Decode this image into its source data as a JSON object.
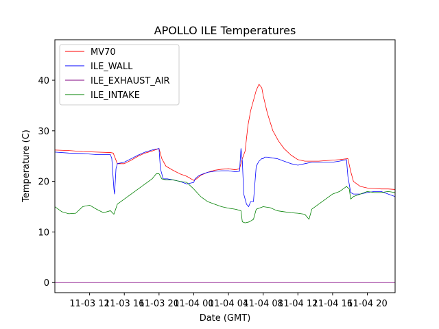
{
  "chart_data": {
    "type": "line",
    "title": "APOLLO ILE Temperatures",
    "xlabel": "Date (GMT)",
    "ylabel": "Temperature (C)",
    "xlim": [
      8.5,
      33.0
    ],
    "ylim": [
      -2,
      48
    ],
    "grid": false,
    "legend_position": "top-left",
    "x_ticks": [
      {
        "value": 11,
        "label": "11-03 12"
      },
      {
        "value": 13.5,
        "label": "11-03 16"
      },
      {
        "value": 16,
        "label": "11-03 20"
      },
      {
        "value": 18.5,
        "label": "11-04 00"
      },
      {
        "value": 21,
        "label": "11-04 04"
      },
      {
        "value": 23.5,
        "label": "11-04 08"
      },
      {
        "value": 26,
        "label": "11-04 12"
      },
      {
        "value": 28.5,
        "label": "11-04 16"
      },
      {
        "value": 31,
        "label": "11-04 20"
      }
    ],
    "y_ticks": [
      0,
      10,
      20,
      30,
      40
    ],
    "series": [
      {
        "name": "MV70",
        "color": "#ff0000",
        "x": [
          8.5,
          9.5,
          10.5,
          11.5,
          12.5,
          12.7,
          13.0,
          13.5,
          14.0,
          14.5,
          15.0,
          15.5,
          16.0,
          16.2,
          16.5,
          17.0,
          17.5,
          18.0,
          18.5,
          18.7,
          19.0,
          19.5,
          20.0,
          20.5,
          21.0,
          21.5,
          21.8,
          22.0,
          22.2,
          22.4,
          22.6,
          22.8,
          23.0,
          23.2,
          23.4,
          23.5,
          23.8,
          24.2,
          24.6,
          25.0,
          25.5,
          26.0,
          26.5,
          27.0,
          27.5,
          28.0,
          28.5,
          29.0,
          29.6,
          29.8,
          30.0,
          30.5,
          31.0,
          31.5,
          32.0,
          32.5,
          33.0
        ],
        "y": [
          26.2,
          26.1,
          25.9,
          25.8,
          25.7,
          25.6,
          23.5,
          23.5,
          24.2,
          25.0,
          25.6,
          26.0,
          26.5,
          24.5,
          23.0,
          22.2,
          21.5,
          21.0,
          20.2,
          20.5,
          21.2,
          21.8,
          22.2,
          22.4,
          22.5,
          22.3,
          22.5,
          24.5,
          26.0,
          31.0,
          34.0,
          36.0,
          38.0,
          39.2,
          38.5,
          37.0,
          33.5,
          30.0,
          28.0,
          26.5,
          25.2,
          24.3,
          24.0,
          24.0,
          24.0,
          24.1,
          24.2,
          24.3,
          24.5,
          22.0,
          20.0,
          19.0,
          18.7,
          18.6,
          18.5,
          18.5,
          18.4
        ]
      },
      {
        "name": "ILE_WALL",
        "color": "#0000ff",
        "x": [
          8.5,
          9.5,
          10.5,
          11.5,
          12.5,
          12.6,
          12.75,
          12.8,
          12.9,
          13.0,
          13.5,
          14.0,
          14.5,
          15.0,
          15.5,
          16.0,
          16.1,
          16.3,
          16.6,
          17.0,
          17.5,
          18.0,
          18.5,
          18.6,
          18.8,
          19.0,
          19.5,
          20.0,
          20.5,
          21.0,
          21.5,
          21.8,
          21.9,
          22.0,
          22.1,
          22.2,
          22.3,
          22.45,
          22.6,
          22.8,
          23.0,
          23.2,
          23.4,
          23.5,
          23.6,
          23.8,
          24.0,
          24.5,
          25.0,
          25.5,
          26.0,
          26.5,
          27.0,
          27.5,
          28.0,
          28.5,
          29.0,
          29.5,
          29.6,
          29.8,
          30.0,
          30.5,
          31.0,
          31.5,
          32.0,
          32.5,
          33.0
        ],
        "y": [
          25.8,
          25.6,
          25.5,
          25.3,
          25.3,
          24.5,
          18.5,
          17.5,
          22.5,
          23.5,
          23.8,
          24.5,
          25.2,
          25.8,
          26.2,
          26.5,
          22.5,
          20.5,
          20.5,
          20.3,
          20.0,
          19.5,
          19.8,
          20.5,
          21.0,
          21.3,
          21.8,
          22.0,
          22.1,
          22.1,
          21.9,
          22.0,
          26.5,
          24.0,
          17.5,
          16.5,
          15.5,
          15.0,
          16.0,
          16.0,
          23.0,
          24.0,
          24.5,
          24.5,
          24.8,
          24.8,
          24.7,
          24.5,
          24.0,
          23.5,
          23.2,
          23.5,
          23.8,
          23.8,
          23.8,
          23.8,
          24.0,
          24.3,
          21.0,
          17.8,
          17.5,
          17.5,
          17.8,
          18.0,
          18.0,
          17.5,
          17.0
        ]
      },
      {
        "name": "ILE_EXHAUST_AIR",
        "color": "#800080",
        "x": [
          8.5,
          33.0
        ],
        "y": [
          0.0,
          0.0
        ]
      },
      {
        "name": "ILE_INTAKE",
        "color": "#008000",
        "x": [
          8.5,
          9.0,
          9.5,
          10.0,
          10.5,
          11.0,
          11.5,
          12.0,
          12.5,
          12.75,
          13.0,
          13.5,
          14.0,
          14.5,
          15.0,
          15.5,
          15.8,
          16.0,
          16.2,
          16.5,
          17.0,
          17.5,
          18.0,
          18.5,
          19.0,
          19.5,
          20.0,
          20.5,
          21.0,
          21.5,
          21.9,
          22.0,
          22.2,
          22.5,
          22.8,
          23.0,
          23.5,
          24.0,
          24.5,
          25.0,
          25.5,
          26.0,
          26.5,
          26.8,
          27.0,
          27.5,
          28.0,
          28.5,
          29.0,
          29.5,
          29.7,
          29.8,
          30.0,
          30.5,
          31.0,
          31.5,
          32.0,
          32.5,
          33.0
        ],
        "y": [
          15.0,
          14.0,
          13.6,
          13.7,
          15.0,
          15.3,
          14.5,
          13.8,
          14.2,
          13.5,
          15.5,
          16.5,
          17.5,
          18.5,
          19.5,
          20.5,
          21.5,
          21.5,
          20.5,
          20.3,
          20.3,
          20.0,
          19.8,
          18.5,
          17.0,
          16.0,
          15.5,
          15.0,
          14.7,
          14.5,
          14.2,
          12.0,
          11.8,
          12.0,
          12.5,
          14.5,
          15.0,
          14.8,
          14.2,
          14.0,
          13.8,
          13.7,
          13.5,
          12.5,
          14.5,
          15.5,
          16.5,
          17.5,
          18.0,
          19.0,
          18.5,
          16.5,
          17.0,
          17.5,
          18.0,
          17.8,
          17.8,
          18.0,
          17.8
        ]
      }
    ]
  }
}
